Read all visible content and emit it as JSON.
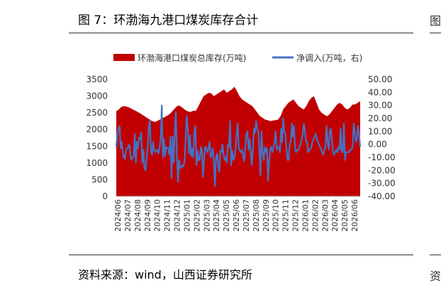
{
  "figure": {
    "title": "图 7：环渤海九港口煤炭库存合计",
    "source": "资料来源：wind，山西证券研究所",
    "edge_top_glyph": "图",
    "edge_bottom_glyph": "资"
  },
  "chart_data": {
    "type": "area+line",
    "title": "",
    "series": [
      {
        "name": "环渤海港口煤炭总库存(万吨)",
        "kind": "area",
        "axis": "left",
        "color": "#c00000",
        "values": [
          2550,
          2600,
          2680,
          2700,
          2690,
          2660,
          2620,
          2580,
          2540,
          2500,
          2450,
          2400,
          2350,
          2300,
          2250,
          2230,
          2260,
          2300,
          2340,
          2380,
          2420,
          2480,
          2560,
          2650,
          2720,
          2700,
          2640,
          2580,
          2540,
          2530,
          2560,
          2560,
          2700,
          2850,
          3000,
          3050,
          3100,
          3080,
          3000,
          3050,
          3100,
          3150,
          3200,
          3100,
          3150,
          3200,
          3280,
          3150,
          3000,
          2900,
          2850,
          2800,
          2750,
          2700,
          2600,
          2500,
          2400,
          2350,
          2300,
          2280,
          2250,
          2270,
          2280,
          2300,
          2400,
          2600,
          2700,
          2800,
          2850,
          2900,
          2800,
          2700,
          2650,
          2600,
          2700,
          2850,
          2950,
          3000,
          2800,
          2600,
          2500,
          2450,
          2400,
          2450,
          2550,
          2650,
          2750,
          2800,
          2750,
          2650,
          2600,
          2650,
          2750,
          2750,
          2800,
          2850
        ]
      },
      {
        "name": "净调入(万吨，右)",
        "kind": "line",
        "axis": "right",
        "color": "#4472c4",
        "values": [
          -2,
          8,
          12,
          14,
          -3,
          2,
          -6,
          -10,
          -11,
          -4,
          -3,
          -2,
          0,
          -8,
          -12,
          -10,
          -9,
          8,
          -14,
          2,
          -3,
          5,
          4,
          9,
          -14,
          -4,
          -18,
          -20,
          -10,
          -2,
          14,
          18,
          -5,
          -8,
          2,
          -4,
          -6,
          -5,
          -4,
          -7,
          -2,
          5,
          30,
          -10,
          4,
          -9,
          -2,
          -3,
          -3,
          -8,
          6,
          -26,
          6,
          -14,
          10,
          25,
          -11,
          -29,
          -12,
          -18,
          -18,
          -16,
          -17,
          -13,
          5,
          22,
          12,
          -7,
          7,
          -9,
          -3,
          -10,
          10,
          14,
          -16,
          -5,
          -12,
          -12,
          -2,
          -4,
          -25,
          -12,
          -2,
          -2,
          -6,
          -4,
          2,
          -10,
          -8,
          -3,
          -12,
          -32,
          -10,
          -7,
          -16,
          -21,
          -5,
          -6,
          0,
          -8,
          -12,
          -10,
          -14,
          0,
          -2,
          18,
          -16,
          -5,
          -12,
          -10,
          -4,
          8,
          16,
          -3,
          -5,
          -6,
          -4,
          -9,
          -13,
          -2,
          8,
          10,
          -4,
          4,
          -6,
          -16,
          -4,
          12,
          9,
          18,
          12,
          10,
          -4,
          -24,
          10,
          -6,
          -12,
          -2,
          -6,
          -3,
          -28,
          -14,
          -4,
          -2,
          -6,
          -2,
          2,
          10,
          -4,
          -2,
          -2,
          -6,
          12,
          2,
          20,
          10,
          8,
          -3,
          -12,
          -12,
          0,
          2,
          16,
          6,
          14,
          -4,
          -6,
          -4,
          -4,
          -2,
          0,
          4,
          8,
          16,
          10,
          2,
          2,
          -6,
          -4,
          -4,
          -2,
          2,
          4,
          6,
          8,
          4,
          2,
          0,
          -2,
          -4,
          -6,
          -8,
          -4,
          -2,
          14,
          2,
          -4,
          10,
          12,
          2,
          -6,
          -8,
          -6,
          -4,
          -6,
          -2,
          -4,
          12,
          -6,
          -6,
          16,
          -12,
          -6,
          -6,
          -6,
          -6,
          -4,
          -4,
          -2,
          16,
          10,
          2,
          4,
          14,
          8,
          -2
        ]
      }
    ],
    "x_labels": [
      "2024/06",
      "2024/07",
      "2024/08",
      "2024/09",
      "2024/10",
      "2024/11",
      "2024/12",
      "2025/01",
      "2025/02",
      "2025/03",
      "2025/04",
      "2025/05",
      "2025/06",
      "2025/07",
      "2025/08",
      "2025/09",
      "2025/10",
      "2025/11",
      "2025/12",
      "2026/01",
      "2026/02",
      "2026/03",
      "2026/04",
      "2026/05",
      "2026/06"
    ],
    "y_left": {
      "min": 0,
      "max": 3500,
      "ticks": [
        "0",
        "500",
        "1000",
        "1500",
        "2000",
        "2500",
        "3000",
        "3500"
      ]
    },
    "y_right": {
      "min": -40,
      "max": 50,
      "ticks": [
        "-40.00",
        "-30.00",
        "-20.00",
        "-10.00",
        "0.00",
        "10.00",
        "20.00",
        "30.00",
        "40.00",
        "50.00"
      ]
    },
    "legend_position": "top",
    "grid": false
  }
}
